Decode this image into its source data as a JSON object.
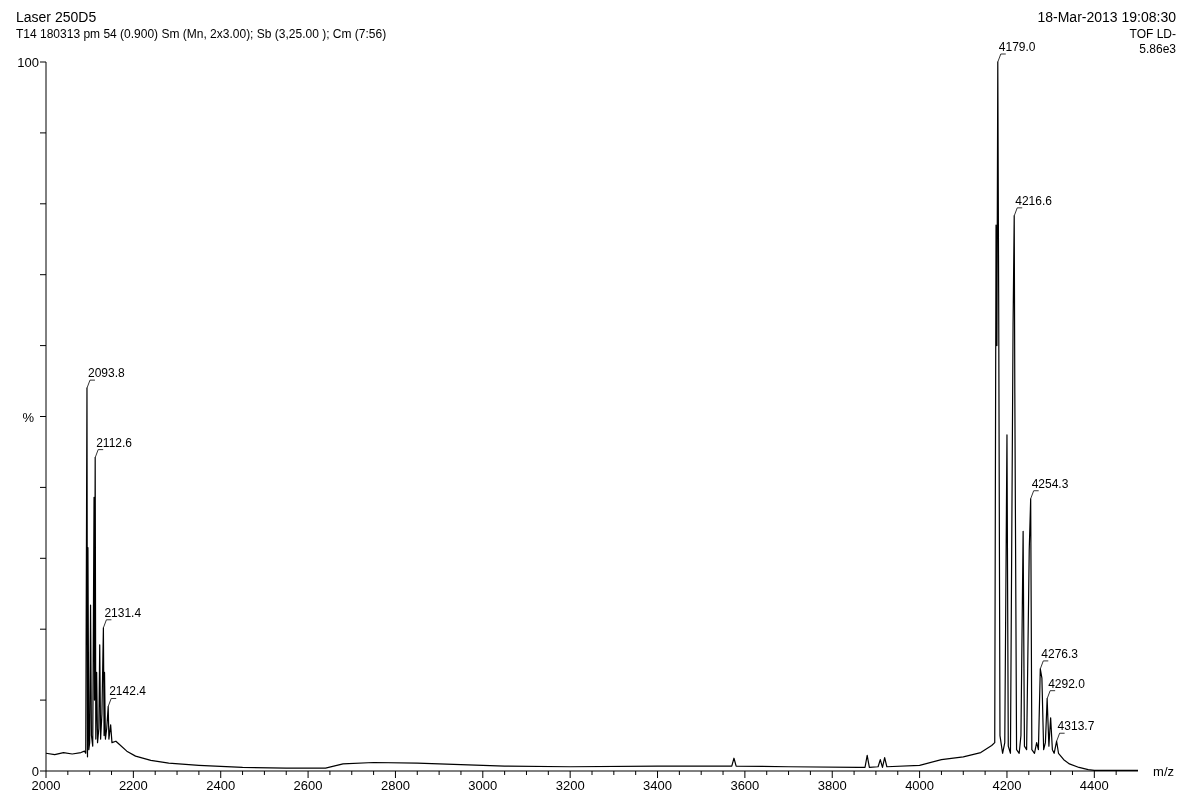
{
  "chart_data": {
    "type": "line",
    "xlabel": "m/z",
    "ylabel": "%",
    "annotations": [
      "Laser 250D5",
      "18-Mar-2013 19:08:30",
      "T14 180313 pm  54 (0.900) Sm (Mn, 2x3.00); Sb (3,25.00 ); Cm (7:56)",
      "TOF LD-",
      "5.86e3",
      {
        "text": "2093.8",
        "x": 2093.8,
        "y": 54.0
      },
      {
        "text": "2112.6",
        "x": 2112.6,
        "y": 44.2
      },
      {
        "text": "2131.4",
        "x": 2131.4,
        "y": 20.2
      },
      {
        "text": "2142.4",
        "x": 2142.4,
        "y": 9.1
      },
      {
        "text": "4179.0",
        "x": 4179.0,
        "y": 100
      },
      {
        "text": "4216.6",
        "x": 4216.6,
        "y": 78.3
      },
      {
        "text": "4254.3",
        "x": 4254.3,
        "y": 38.4
      },
      {
        "text": "4276.3",
        "x": 4276.3,
        "y": 14.4
      },
      {
        "text": "4292.0",
        "x": 4292.0,
        "y": 10.2
      },
      {
        "text": "4313.7",
        "x": 4313.7,
        "y": 4.2
      }
    ],
    "series": [
      {
        "color": "#000000",
        "x": [
          2000,
          2020,
          2040,
          2060,
          2080,
          2088,
          2091,
          2093.8,
          2095,
          2096,
          2098,
          2100,
          2102,
          2104,
          2107,
          2110,
          2111,
          2112.6,
          2114,
          2116,
          2118,
          2121,
          2123,
          2125,
          2128,
          2131.4,
          2133,
          2134,
          2136,
          2139,
          2142.4,
          2144,
          2148,
          2151,
          2160,
          2167,
          2185,
          2205,
          2240,
          2281,
          2350,
          2450,
          2550,
          2640,
          2680,
          2750,
          2850,
          2950,
          3050,
          3200,
          3400,
          3570,
          3575,
          3580,
          3700,
          3860,
          3875,
          3880,
          3885,
          3905,
          3910,
          3915,
          3920,
          3925,
          4000,
          4050,
          4100,
          4140,
          4165,
          4172,
          4175,
          4177,
          4179.0,
          4181,
          4184,
          4190,
          4195,
          4200,
          4203,
          4208,
          4214,
          4216.6,
          4218,
          4222,
          4228,
          4232,
          4237,
          4240,
          4245,
          4251,
          4254.3,
          4257,
          4263,
          4268,
          4272,
          4276.3,
          4280,
          4284,
          4288,
          4292.0,
          4296,
          4300,
          4304,
          4308,
          4313.7,
          4318,
          4330,
          4343,
          4365,
          4386,
          4400,
          4500
        ],
        "values": [
          2.5,
          2.3,
          2.6,
          2.4,
          2.6,
          2.8,
          2.5,
          54.0,
          2.0,
          31.5,
          3.0,
          4.0,
          23.4,
          5,
          3.5,
          38.6,
          10,
          44.2,
          4.5,
          13.9,
          4.0,
          6,
          17.8,
          4.5,
          8,
          20.2,
          5,
          13.9,
          4.5,
          6,
          9.1,
          4.5,
          6.5,
          4.0,
          4.2,
          3.8,
          2.8,
          2.1,
          1.5,
          1.1,
          0.8,
          0.5,
          0.4,
          0.4,
          1.0,
          1.2,
          1.1,
          0.9,
          0.7,
          0.6,
          0.7,
          0.7,
          1.8,
          0.7,
          0.6,
          0.5,
          0.5,
          2.2,
          0.5,
          0.6,
          1.6,
          0.5,
          1.9,
          0.6,
          0.8,
          1.6,
          2.0,
          2.6,
          3.6,
          4,
          77.0,
          60,
          100,
          67.4,
          5,
          2.5,
          4,
          47.4,
          3.5,
          2.5,
          63.1,
          78.3,
          53.3,
          3,
          2.5,
          5,
          33.8,
          3.5,
          3,
          31.2,
          38.4,
          3,
          2.5,
          4,
          3,
          14.4,
          13.1,
          3,
          4,
          10.2,
          3.5,
          7.5,
          3,
          2.5,
          4.2,
          2.5,
          1.6,
          1.0,
          0.5,
          0.2,
          0.1,
          0.1
        ]
      }
    ],
    "xlim": [
      2000,
      4500
    ],
    "xticks": [
      2000,
      {
        "value": 2050,
        "label": null
      },
      {
        "value": 2100,
        "label": null
      },
      {
        "value": 2150,
        "label": null
      },
      2200,
      {
        "value": 2250,
        "label": null
      },
      {
        "value": 2300,
        "label": null
      },
      {
        "value": 2350,
        "label": null
      },
      2400,
      {
        "value": 2450,
        "label": null
      },
      {
        "value": 2500,
        "label": null
      },
      {
        "value": 2550,
        "label": null
      },
      2600,
      {
        "value": 2650,
        "label": null
      },
      {
        "value": 2700,
        "label": null
      },
      {
        "value": 2750,
        "label": null
      },
      2800,
      {
        "value": 2850,
        "label": null
      },
      {
        "value": 2900,
        "label": null
      },
      {
        "value": 2950,
        "label": null
      },
      3000,
      {
        "value": 3050,
        "label": null
      },
      {
        "value": 3100,
        "label": null
      },
      {
        "value": 3150,
        "label": null
      },
      3200,
      {
        "value": 3250,
        "label": null
      },
      {
        "value": 3300,
        "label": null
      },
      {
        "value": 3350,
        "label": null
      },
      3400,
      {
        "value": 3450,
        "label": null
      },
      {
        "value": 3500,
        "label": null
      },
      {
        "value": 3550,
        "label": null
      },
      3600,
      {
        "value": 3650,
        "label": null
      },
      {
        "value": 3700,
        "label": null
      },
      {
        "value": 3750,
        "label": null
      },
      3800,
      {
        "value": 3850,
        "label": null
      },
      {
        "value": 3900,
        "label": null
      },
      {
        "value": 3950,
        "label": null
      },
      4000,
      {
        "value": 4050,
        "label": null
      },
      {
        "value": 4100,
        "label": null
      },
      {
        "value": 4150,
        "label": null
      },
      4200,
      {
        "value": 4250,
        "label": null
      },
      {
        "value": 4300,
        "label": null
      },
      {
        "value": 4350,
        "label": null
      },
      4400,
      {
        "value": 4450,
        "label": null
      }
    ],
    "ylim": [
      0,
      100
    ],
    "yticks": [
      0,
      {
        "value": 10,
        "label": null
      },
      {
        "value": 20,
        "label": null
      },
      {
        "value": 30,
        "label": null
      },
      {
        "value": 40,
        "label": null
      },
      {
        "value": 50,
        "label": null
      },
      {
        "value": 60,
        "label": null
      },
      {
        "value": 70,
        "label": null
      },
      {
        "value": 80,
        "label": null
      },
      {
        "value": 90,
        "label": null
      },
      100
    ],
    "marker": "none",
    "line_style": "solid"
  }
}
